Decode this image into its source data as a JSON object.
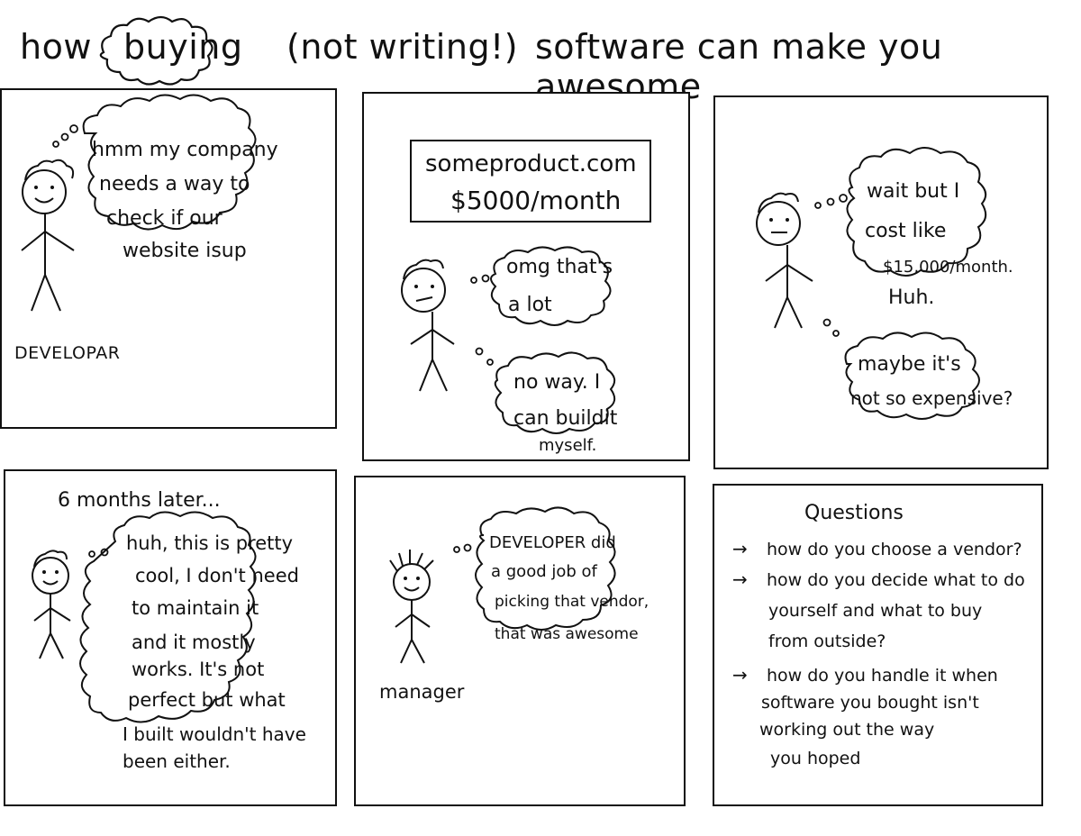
{
  "title": {
    "how": "how",
    "buying": "buying",
    "not_writing": "(not writing!)",
    "rest": "software can make you awesome"
  },
  "panel1": {
    "thought": [
      "hmm my company",
      "needs a way to",
      "check if our",
      "website isup"
    ],
    "label": "DEVELOPAR"
  },
  "panel2": {
    "sign": [
      "someproduct.com",
      "$5000/month"
    ],
    "thought1": [
      "omg that's",
      "a lot"
    ],
    "thought2": [
      "no way. I",
      "can buildit",
      "myself."
    ]
  },
  "panel3": {
    "thought1": [
      "wait but I",
      "cost like",
      "$15,000/month.",
      "Huh."
    ],
    "thought2": [
      "maybe it's",
      "not so expensive?"
    ]
  },
  "panel4": {
    "caption": "6 months later...",
    "thought": [
      "huh, this is pretty",
      "cool, I don't need",
      "to maintain it",
      "and it mostly",
      "works. It's not",
      "perfect but what",
      "I built wouldn't have",
      "been either."
    ]
  },
  "panel5": {
    "thought": [
      "DEVELOPER did",
      "a good job of",
      "picking that vendor,",
      "that was awesome"
    ],
    "label": "manager"
  },
  "panel6": {
    "heading": "Questions",
    "items": [
      {
        "arrow": "→",
        "lines": [
          "how do you choose a vendor?"
        ]
      },
      {
        "arrow": "→",
        "lines": [
          "how do you decide what to do",
          "yourself and what to buy",
          "from outside?"
        ]
      },
      {
        "arrow": "→",
        "lines": [
          "how do you handle it when",
          "software you bought isn't",
          "working out the way",
          "you hoped"
        ]
      }
    ]
  }
}
